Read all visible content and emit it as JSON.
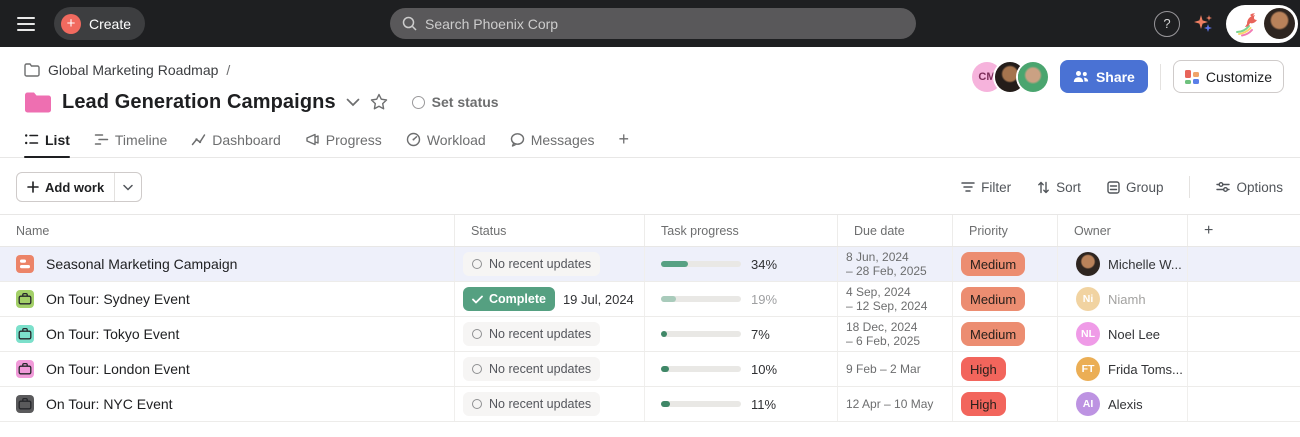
{
  "topbar": {
    "create": "Create",
    "search_placeholder": "Search Phoenix Corp",
    "help": "?"
  },
  "breadcrumb": {
    "project": "Global Marketing Roadmap",
    "separator": "/"
  },
  "header": {
    "title": "Lead Generation Campaigns",
    "set_status": "Set status",
    "share": "Share",
    "customize": "Customize",
    "members": [
      {
        "type": "initials",
        "initials": "CM",
        "bg": "#f6b3dc",
        "fg": "#7c2d58"
      },
      {
        "type": "photo"
      },
      {
        "type": "photo"
      }
    ]
  },
  "tabs": [
    {
      "label": "List",
      "active": true
    },
    {
      "label": "Timeline",
      "active": false
    },
    {
      "label": "Dashboard",
      "active": false
    },
    {
      "label": "Progress",
      "active": false
    },
    {
      "label": "Workload",
      "active": false
    },
    {
      "label": "Messages",
      "active": false
    }
  ],
  "tabs_add_label": "+",
  "toolbar": {
    "add_work": "Add work",
    "actions": [
      {
        "label": "Filter"
      },
      {
        "label": "Sort"
      },
      {
        "label": "Group"
      },
      {
        "label": "Options"
      }
    ]
  },
  "table": {
    "columns": [
      "Name",
      "Status",
      "Task progress",
      "Due date",
      "Priority",
      "Owner",
      "+"
    ],
    "rows": [
      {
        "name": "Seasonal Marketing Campaign",
        "selected": true,
        "icon": {
          "type": "project-icon",
          "bg": "#ec8468"
        },
        "status": {
          "type": "none",
          "label": "No recent updates"
        },
        "progress": {
          "pct": 34,
          "label": "34%",
          "fill": "#57a183",
          "label_muted": false
        },
        "due": [
          "8 Jun, 2024",
          "– 28 Feb, 2025"
        ],
        "priority": {
          "label": "Medium",
          "bg": "#ec8d71"
        },
        "owner": {
          "name": "Michelle W...",
          "avatar_type": "photo",
          "muted": false
        }
      },
      {
        "name": "On Tour: Sydney Event",
        "selected": false,
        "icon": {
          "type": "briefcase-icon",
          "bg": "#a3d068"
        },
        "status": {
          "type": "complete",
          "label": "Complete",
          "date": "19 Jul, 2024",
          "bg": "#55a081"
        },
        "progress": {
          "pct": 19,
          "label": "19%",
          "fill": "#a9cbbb",
          "label_muted": true
        },
        "due": [
          "4 Sep, 2024",
          "– 12 Sep, 2024"
        ],
        "priority": {
          "label": "Medium",
          "bg": "#ec8d71"
        },
        "owner": {
          "name": "Niamh",
          "avatar_type": "initials",
          "initials": "Ni",
          "bg": "#f1d3a1",
          "muted": true
        }
      },
      {
        "name": "On Tour: Tokyo Event",
        "selected": false,
        "icon": {
          "type": "briefcase-icon",
          "bg": "#7ce0cb"
        },
        "status": {
          "type": "none",
          "label": "No recent updates"
        },
        "progress": {
          "pct": 7,
          "label": "7%",
          "fill": "#3f8767",
          "label_muted": false
        },
        "due": [
          "18 Dec, 2024",
          "– 6 Feb, 2025"
        ],
        "priority": {
          "label": "Medium",
          "bg": "#ec8d71"
        },
        "owner": {
          "name": "Noel Lee",
          "avatar_type": "initials",
          "initials": "NL",
          "bg": "#ef9be7",
          "muted": false
        }
      },
      {
        "name": "On Tour: London Event",
        "selected": false,
        "icon": {
          "type": "briefcase-icon",
          "bg": "#f19ad9"
        },
        "status": {
          "type": "none",
          "label": "No recent updates"
        },
        "progress": {
          "pct": 10,
          "label": "10%",
          "fill": "#3f8767",
          "label_muted": false
        },
        "due": [
          "9 Feb – 2 Mar"
        ],
        "priority": {
          "label": "High",
          "bg": "#f2655c"
        },
        "owner": {
          "name": "Frida Toms...",
          "avatar_type": "initials",
          "initials": "FT",
          "bg": "#ebae55",
          "muted": false
        }
      },
      {
        "name": "On Tour: NYC Event",
        "selected": false,
        "icon": {
          "type": "briefcase-icon",
          "bg": "#5a5a5c"
        },
        "status": {
          "type": "none",
          "label": "No recent updates"
        },
        "progress": {
          "pct": 11,
          "label": "11%",
          "fill": "#3f8767",
          "label_muted": false
        },
        "due": [
          "12 Apr – 10 May"
        ],
        "priority": {
          "label": "High",
          "bg": "#f2655c"
        },
        "owner": {
          "name": "Alexis",
          "avatar_type": "initials",
          "initials": "AI",
          "bg": "#bd93e2",
          "muted": false
        }
      }
    ]
  },
  "colors": {
    "topbar_bg": "#1e1f21",
    "accent_coral": "#f16a5f",
    "share_blue": "#4a72d4",
    "folder_pink": "#ee6fb1",
    "selected_row": "#eef0fa",
    "medium_badge": "#ec8d71",
    "high_badge": "#f2655c",
    "complete_green": "#55a081",
    "progress_green": "#57a183"
  }
}
